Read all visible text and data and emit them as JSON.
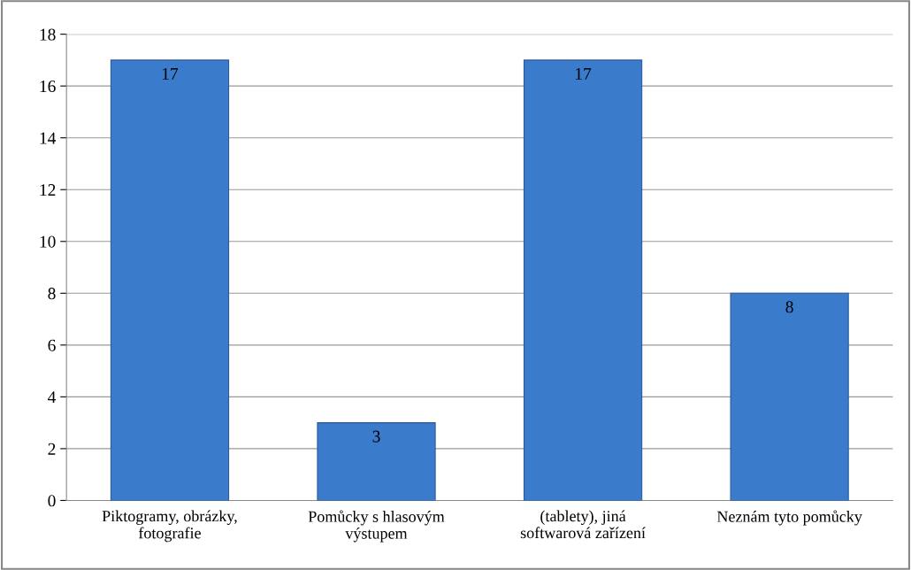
{
  "chart_data": {
    "type": "bar",
    "categories": [
      "Piktogramy, obrázky,\nfotografie",
      "Pomůcky s hlasovým\nvýstupem",
      "(tablety), jiná\nsoftwarová zařízení",
      "Neznám tyto pomůcky"
    ],
    "values": [
      17,
      3,
      17,
      8
    ],
    "color": "#3b7bcc",
    "ylim": [
      0,
      18
    ],
    "yticks": [
      0,
      2,
      4,
      6,
      8,
      10,
      12,
      14,
      16,
      18
    ],
    "grid": "y",
    "data_labels": true,
    "legend": false
  }
}
